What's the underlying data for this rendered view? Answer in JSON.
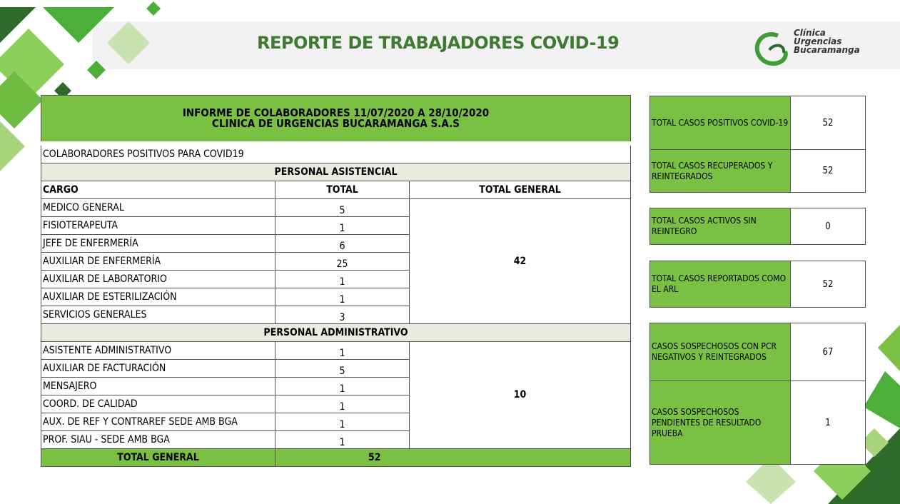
{
  "header": {
    "title": "REPORTE DE TRABAJADORES COVID-19",
    "logo": [
      "Clínica",
      "Urgencias",
      "Bucaramanga"
    ]
  },
  "table": {
    "title": [
      "INFORME DE COLABORADORES 11/07/2020 A 28/10/2020",
      "CLINICA DE URGENCIAS BUCARAMANGA S.A.S"
    ],
    "subtitle": "COLABORADORES POSITIVOS PARA COVID19",
    "columns": [
      "CARGO",
      "TOTAL",
      "TOTAL GENERAL"
    ],
    "sections": [
      {
        "name": "PERSONAL ASISTENCIAL",
        "rows": [
          [
            "MEDICO GENERAL",
            5
          ],
          [
            "FISIOTERAPEUTA",
            1
          ],
          [
            "JEFE DE ENFERMERÍA",
            6
          ],
          [
            "AUXILIAR DE ENFERMERÍA",
            25
          ],
          [
            "AUXILIAR DE LABORATORIO",
            1
          ],
          [
            "AUXILIAR DE ESTERILIZACIÓN",
            1
          ],
          [
            "SERVICIOS GENERALES",
            3
          ]
        ],
        "total": 42
      },
      {
        "name": "PERSONAL ADMINISTRATIVO",
        "rows": [
          [
            "ASISTENTE ADMINISTRATIVO",
            1
          ],
          [
            "AUXILIAR DE FACTURACIÓN",
            5
          ],
          [
            "MENSAJERO",
            1
          ],
          [
            "COORD. DE CALIDAD",
            1
          ],
          [
            "AUX. DE REF Y CONTRAREF SEDE AMB BGA",
            1
          ],
          [
            "PROF. SIAU - SEDE AMB BGA",
            1
          ]
        ],
        "total": 10
      }
    ],
    "footer": {
      "label": "TOTAL GENERAL",
      "value": 52
    }
  },
  "summary": [
    [
      {
        "label": "TOTAL CASOS POSITIVOS COVID-19",
        "value": 52
      },
      {
        "label": "TOTAL CASOS RECUPERADOS Y REINTEGRADOS",
        "value": 52
      }
    ],
    [
      {
        "label": "TOTAL  CASOS ACTIVOS SIN REINTEGRO",
        "value": 0
      }
    ],
    [
      {
        "label": "TOTAL CASOS REPORTADOS COMO EL ARL",
        "value": 52
      }
    ],
    [
      {
        "label": "CASOS SOSPECHOSOS CON PCR NEGATIVOS Y REINTEGRADOS",
        "value": 67
      },
      {
        "label": "CASOS SOSPECHOSOS PENDIENTES DE RESULTADO PRUEBA",
        "value": 1
      }
    ]
  ]
}
